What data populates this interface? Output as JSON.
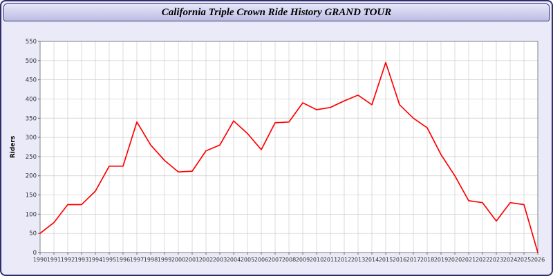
{
  "window": {
    "title": "California Triple Crown Ride History GRAND TOUR"
  },
  "colors": {
    "line": "#ff0000",
    "plot_background": "#ffffff",
    "grid": "#cccccc",
    "plot_border": "#808080",
    "tick_label": "#333333",
    "panel_background": "#eaeaf8",
    "window_border": "#2e2e6e"
  },
  "chart_data": {
    "type": "line",
    "title": "California Triple Crown Ride History GRAND TOUR",
    "xlabel": "",
    "ylabel": "Riders",
    "ylim": [
      0,
      550
    ],
    "ytick_step": 50,
    "grid": true,
    "legend": "none",
    "categories": [
      1990,
      1991,
      1992,
      1993,
      1994,
      1995,
      1996,
      1997,
      1998,
      1999,
      2000,
      2001,
      2002,
      2003,
      2004,
      2005,
      2006,
      2007,
      2008,
      2009,
      2010,
      2011,
      2012,
      2013,
      2014,
      2015,
      2016,
      2017,
      2018,
      2019,
      2020,
      2021,
      2022,
      2023,
      2024,
      2025,
      2026
    ],
    "series": [
      {
        "name": "Riders",
        "color": "#ff0000",
        "values": [
          50,
          78,
          125,
          125,
          160,
          225,
          225,
          340,
          280,
          240,
          210,
          212,
          265,
          280,
          343,
          310,
          268,
          338,
          340,
          390,
          372,
          378,
          395,
          410,
          385,
          495,
          385,
          350,
          325,
          255,
          200,
          135,
          130,
          82,
          130,
          125,
          0
        ]
      }
    ]
  }
}
